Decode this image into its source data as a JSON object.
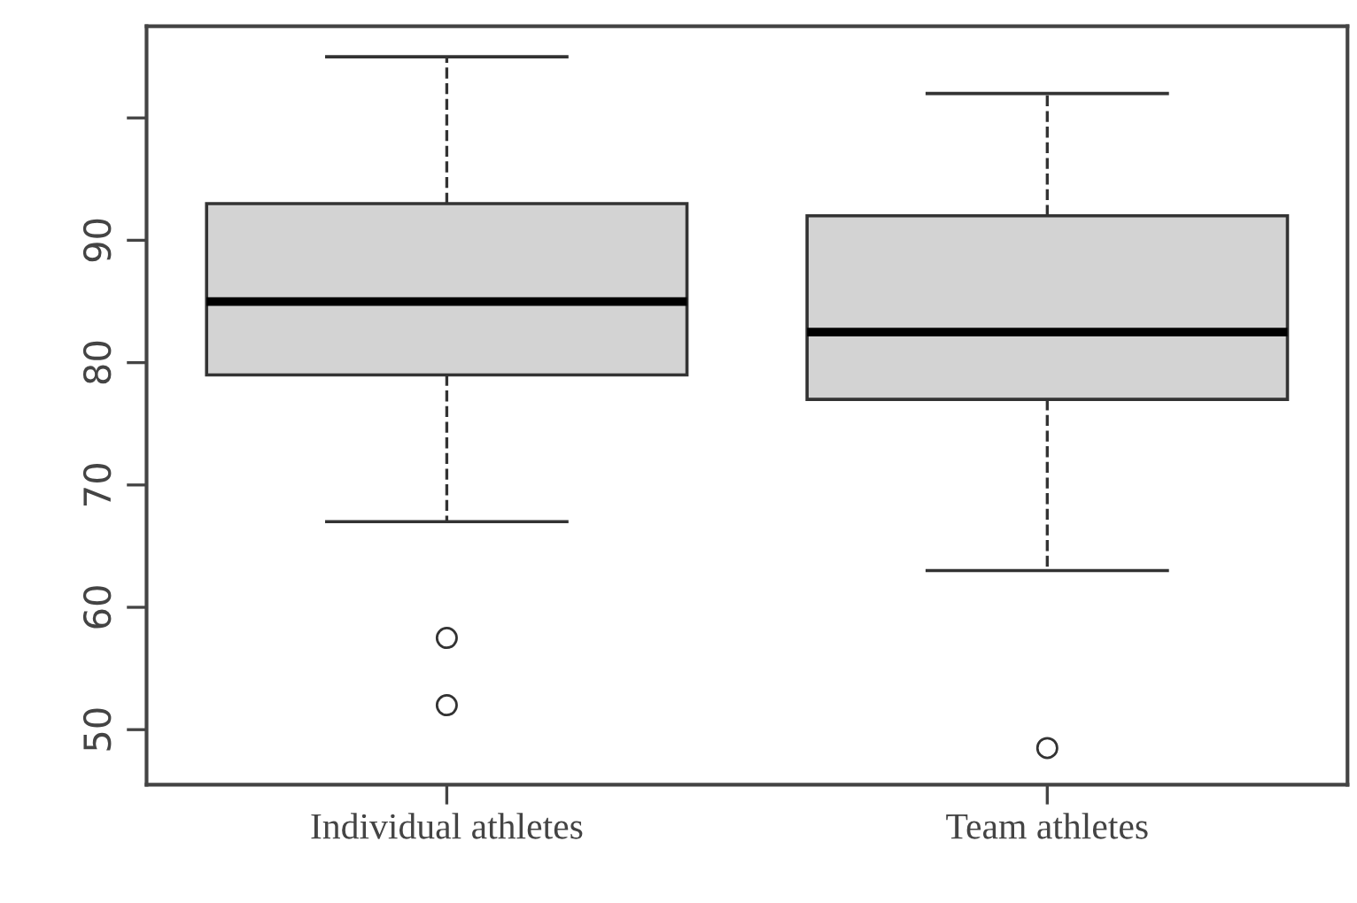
{
  "chart_data": {
    "type": "box",
    "categories": [
      "Individual athletes",
      "Team athletes"
    ],
    "boxes": [
      {
        "low": 67,
        "q1": 79,
        "median": 85,
        "q3": 93,
        "high": 105,
        "outliers": [
          57.5,
          52
        ]
      },
      {
        "low": 63,
        "q1": 77,
        "median": 82.5,
        "q3": 92,
        "high": 102,
        "outliers": [
          48.5
        ]
      }
    ],
    "color": "#d3d3d3",
    "ylim": [
      45.5,
      107.5
    ],
    "yticks": [
      50,
      60,
      70,
      80,
      90,
      {
        "value": 100,
        "label": null
      }
    ],
    "grid": false,
    "line_style": "dashed",
    "marker": "circle"
  }
}
